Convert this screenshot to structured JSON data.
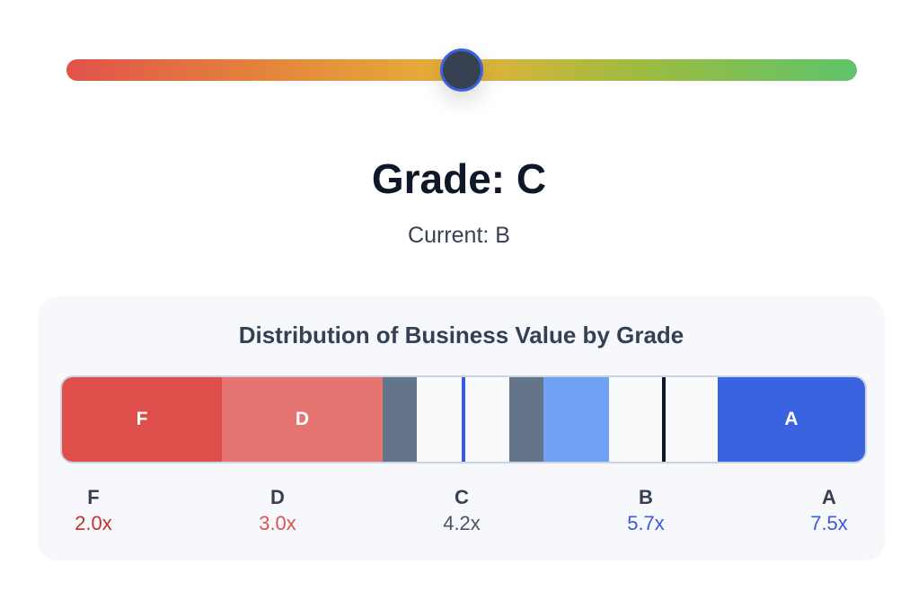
{
  "slider": {
    "position_fraction": 0.5,
    "gradient_colors": [
      "#e1524b",
      "#e6b23a",
      "#5fc36a"
    ],
    "thumb_color": "#374151",
    "thumb_border_color": "#3b63e0"
  },
  "grade": {
    "title": "Grade: C",
    "current": "Current: B"
  },
  "distribution": {
    "title": "Distribution of Business Value by Grade",
    "segments": {
      "f_label": "F",
      "d_label": "D",
      "a_label": "A"
    },
    "colors": {
      "f": "#de4f4c",
      "d": "#e67571",
      "neutral": "#64748b",
      "b_light": "#6fa1f5",
      "a": "#3a63e0",
      "c_marker": "#3b5bdb",
      "b_marker": "#0f172a"
    },
    "grades": [
      {
        "letter": "F",
        "multiplier": "2.0x",
        "color": "#c53030"
      },
      {
        "letter": "D",
        "multiplier": "3.0x",
        "color": "#e0524e"
      },
      {
        "letter": "C",
        "multiplier": "4.2x",
        "color": "#4b5563"
      },
      {
        "letter": "B",
        "multiplier": "5.7x",
        "color": "#3b5bdb"
      },
      {
        "letter": "A",
        "multiplier": "7.5x",
        "color": "#3b5bdb"
      }
    ]
  }
}
